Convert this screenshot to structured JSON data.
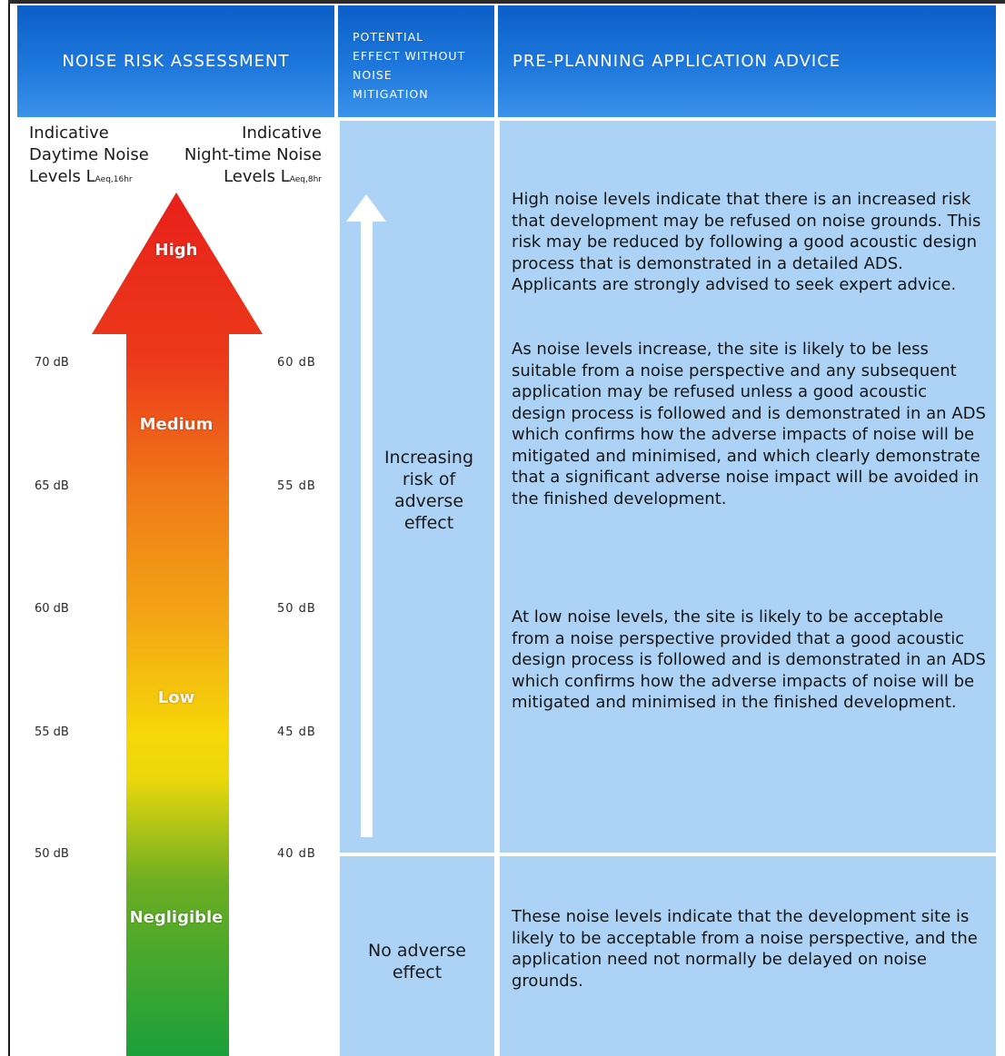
{
  "header": {
    "noise_risk": "NOISE RISK ASSESSMENT",
    "effect_lines": [
      "POTENTIAL",
      "EFFECT WITHOUT",
      "NOISE",
      "MITIGATION"
    ],
    "advice": "PRE-PLANNING APPLICATION ADVICE"
  },
  "levels": {
    "day_lines": [
      "Indicative",
      "Daytime Noise",
      "Levels L"
    ],
    "day_sub": "Aeq,16hr",
    "night_lines": [
      "Indicative",
      "Night-time Noise",
      "Levels L"
    ],
    "night_sub": "Aeq,8hr"
  },
  "scale": [
    {
      "day": "70 dB",
      "night": "60 dB"
    },
    {
      "day": "65 dB",
      "night": "55 dB"
    },
    {
      "day": "60 dB",
      "night": "50 dB"
    },
    {
      "day": "55 dB",
      "night": "45 dB"
    },
    {
      "day": "50 dB",
      "night": "40 dB"
    }
  ],
  "risk_levels": [
    "High",
    "Medium",
    "Low",
    "Negligible"
  ],
  "effect": {
    "increasing": [
      "Increasing",
      "risk of",
      "adverse",
      "effect"
    ],
    "none": [
      "No adverse",
      "effect"
    ]
  },
  "advice": {
    "p1": "High noise levels indicate that there is an increased risk that development may be refused on noise grounds. This risk may be reduced by following a good acoustic design process that is demonstrated in a detailed ADS. Applicants are strongly advised to seek expert advice.",
    "p2": "As noise levels increase, the site is likely to be less suitable from a noise perspective and any subsequent application may be refused unless a good acoustic design process is followed and is demonstrated in an ADS which confirms how the adverse impacts of noise will be mitigated and minimised, and which clearly demonstrate that a significant adverse noise impact will be avoided in the finished development.",
    "p3": "At low noise levels, the site is likely to be acceptable from a noise perspective provided that a good acoustic design process is followed and is demonstrated in an ADS which confirms how the adverse impacts of noise will be mitigated and minimised in the finished development.",
    "p4": "These noise levels indicate that the development site is likely to be acceptable from a noise perspective, and the application need not normally be delayed on noise grounds."
  },
  "colors": {
    "header_blue": "#1e78dc",
    "cell_blue": "#acd2f6",
    "risk_high": "#e8201a",
    "risk_medium": "#f07818",
    "risk_low": "#f6d808",
    "risk_negligible": "#1aa03a"
  }
}
